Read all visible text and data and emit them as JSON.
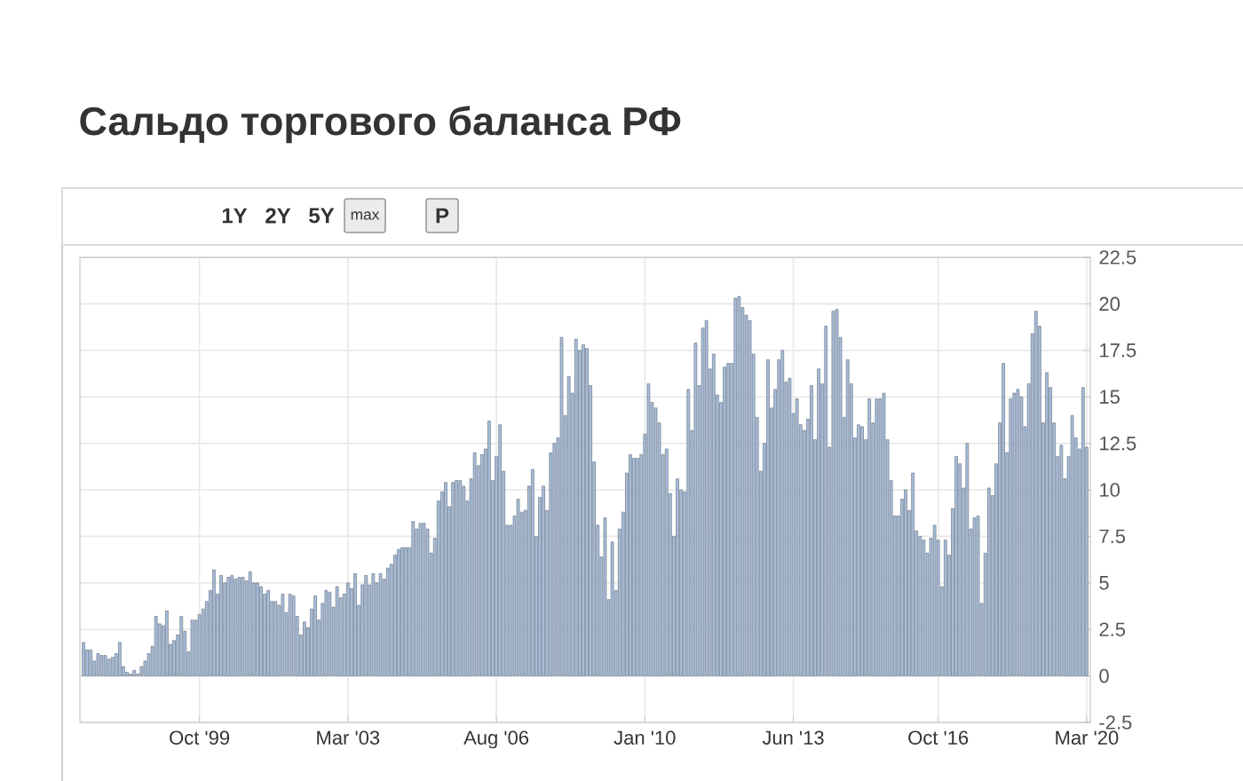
{
  "chart_data": {
    "type": "bar",
    "title": "Сальдо торгового баланса РФ",
    "annotations": [
      "1Y",
      "2Y",
      "5Y",
      "max",
      "P"
    ],
    "x": [
      "1997-02",
      "1997-03",
      "1997-04",
      "1997-05",
      "1997-06",
      "1997-07",
      "1997-08",
      "1997-09",
      "1997-10",
      "1997-11",
      "1997-12",
      "1998-01",
      "1998-02",
      "1998-03",
      "1998-04",
      "1998-05",
      "1998-06",
      "1998-07",
      "1998-08",
      "1998-09",
      "1998-10",
      "1998-11",
      "1998-12",
      "1999-01",
      "1999-02",
      "1999-03",
      "1999-04",
      "1999-05",
      "1999-06",
      "1999-07",
      "1999-08",
      "1999-09",
      "1999-10",
      "1999-11",
      "1999-12",
      "2000-01",
      "2000-02",
      "2000-03",
      "2000-04",
      "2000-05",
      "2000-06",
      "2000-07",
      "2000-08",
      "2000-09",
      "2000-10",
      "2000-11",
      "2000-12",
      "2001-01",
      "2001-02",
      "2001-03",
      "2001-04",
      "2001-05",
      "2001-06",
      "2001-07",
      "2001-08",
      "2001-09",
      "2001-10",
      "2001-11",
      "2001-12",
      "2002-01",
      "2002-02",
      "2002-03",
      "2002-04",
      "2002-05",
      "2002-06",
      "2002-07",
      "2002-08",
      "2002-09",
      "2002-10",
      "2002-11",
      "2002-12",
      "2003-01",
      "2003-02",
      "2003-03",
      "2003-04",
      "2003-05",
      "2003-06",
      "2003-07",
      "2003-08",
      "2003-09",
      "2003-10",
      "2003-11",
      "2003-12",
      "2004-01",
      "2004-02",
      "2004-03",
      "2004-04",
      "2004-05",
      "2004-06",
      "2004-07",
      "2004-08",
      "2004-09",
      "2004-10",
      "2004-11",
      "2004-12",
      "2005-01",
      "2005-02",
      "2005-03",
      "2005-04",
      "2005-05",
      "2005-06",
      "2005-07",
      "2005-08",
      "2005-09",
      "2005-10",
      "2005-11",
      "2005-12",
      "2006-01",
      "2006-02",
      "2006-03",
      "2006-04",
      "2006-05",
      "2006-06",
      "2006-07",
      "2006-08",
      "2006-09",
      "2006-10",
      "2006-11",
      "2006-12",
      "2007-01",
      "2007-02",
      "2007-03",
      "2007-04",
      "2007-05",
      "2007-06",
      "2007-07",
      "2007-08",
      "2007-09",
      "2007-10",
      "2007-11",
      "2007-12",
      "2008-01",
      "2008-02",
      "2008-03",
      "2008-04",
      "2008-05",
      "2008-06",
      "2008-07",
      "2008-08",
      "2008-09",
      "2008-10",
      "2008-11",
      "2008-12",
      "2009-01",
      "2009-02",
      "2009-03",
      "2009-04",
      "2009-05",
      "2009-06",
      "2009-07",
      "2009-08",
      "2009-09",
      "2009-10",
      "2009-11",
      "2009-12",
      "2010-01",
      "2010-02",
      "2010-03",
      "2010-04",
      "2010-05",
      "2010-06",
      "2010-07",
      "2010-08",
      "2010-09",
      "2010-10",
      "2010-11",
      "2010-12",
      "2011-01",
      "2011-02",
      "2011-03",
      "2011-04",
      "2011-05",
      "2011-06",
      "2011-07",
      "2011-08",
      "2011-09",
      "2011-10",
      "2011-11",
      "2011-12",
      "2012-01",
      "2012-02",
      "2012-03",
      "2012-04",
      "2012-05",
      "2012-06",
      "2012-07",
      "2012-08",
      "2012-09",
      "2012-10",
      "2012-11",
      "2012-12",
      "2013-01",
      "2013-02",
      "2013-03",
      "2013-04",
      "2013-05",
      "2013-06",
      "2013-07",
      "2013-08",
      "2013-09",
      "2013-10",
      "2013-11",
      "2013-12",
      "2014-01",
      "2014-02",
      "2014-03",
      "2014-04",
      "2014-05",
      "2014-06",
      "2014-07",
      "2014-08",
      "2014-09",
      "2014-10",
      "2014-11",
      "2014-12",
      "2015-01",
      "2015-02",
      "2015-03",
      "2015-04",
      "2015-05",
      "2015-06",
      "2015-07",
      "2015-08",
      "2015-09",
      "2015-10",
      "2015-11",
      "2015-12",
      "2016-01",
      "2016-02",
      "2016-03",
      "2016-04",
      "2016-05",
      "2016-06",
      "2016-07",
      "2016-08",
      "2016-09",
      "2016-10",
      "2016-11",
      "2016-12",
      "2017-01",
      "2017-02",
      "2017-03",
      "2017-04",
      "2017-05",
      "2017-06",
      "2017-07",
      "2017-08",
      "2017-09",
      "2017-10",
      "2017-11",
      "2017-12",
      "2018-01",
      "2018-02",
      "2018-03",
      "2018-04",
      "2018-05",
      "2018-06",
      "2018-07",
      "2018-08",
      "2018-09",
      "2018-10",
      "2018-11",
      "2018-12",
      "2019-01",
      "2019-02",
      "2019-03",
      "2019-04",
      "2019-05",
      "2019-06",
      "2019-07",
      "2019-08",
      "2019-09",
      "2019-10",
      "2019-11",
      "2019-12",
      "2020-01",
      "2020-02",
      "2020-03"
    ],
    "values": [
      1.8,
      1.4,
      1.4,
      0.8,
      1.2,
      1.1,
      1.1,
      0.9,
      1.0,
      1.2,
      1.8,
      0.5,
      0.2,
      0.1,
      0.3,
      0.1,
      0.5,
      0.8,
      1.2,
      1.6,
      3.2,
      2.8,
      2.7,
      3.5,
      1.7,
      1.9,
      2.2,
      3.2,
      2.4,
      1.3,
      3.0,
      3.0,
      3.3,
      3.6,
      4.0,
      4.6,
      5.7,
      4.4,
      5.4,
      5.0,
      5.3,
      5.4,
      5.2,
      5.3,
      5.3,
      5.1,
      5.6,
      5.0,
      5.0,
      4.8,
      4.4,
      4.6,
      4.0,
      4.0,
      3.8,
      4.4,
      3.4,
      4.4,
      4.3,
      3.2,
      2.2,
      2.9,
      2.6,
      3.6,
      4.3,
      3.0,
      3.9,
      4.6,
      4.5,
      3.7,
      4.8,
      4.2,
      4.4,
      5.0,
      4.7,
      5.5,
      3.8,
      4.9,
      5.4,
      4.9,
      5.5,
      5.0,
      5.5,
      5.2,
      5.8,
      6.0,
      6.5,
      6.8,
      6.9,
      6.9,
      6.9,
      8.3,
      7.9,
      8.2,
      8.2,
      7.9,
      6.6,
      7.4,
      9.4,
      9.9,
      10.4,
      9.1,
      10.4,
      10.5,
      10.5,
      10.2,
      9.4,
      10.6,
      12.0,
      11.3,
      11.9,
      12.2,
      13.7,
      10.5,
      11.8,
      13.5,
      11.0,
      8.1,
      8.1,
      8.6,
      9.5,
      8.8,
      8.9,
      10.2,
      11.1,
      7.5,
      9.6,
      10.2,
      8.9,
      12.0,
      12.5,
      12.8,
      18.2,
      14.0,
      16.1,
      15.2,
      18.1,
      17.5,
      17.8,
      17.6,
      15.6,
      11.5,
      8.1,
      6.4,
      8.5,
      4.1,
      7.2,
      4.6,
      7.9,
      8.8,
      10.9,
      11.9,
      11.7,
      11.7,
      11.9,
      13.0,
      15.7,
      14.7,
      14.4,
      13.6,
      11.9,
      12.2,
      9.8,
      7.5,
      10.6,
      10.0,
      9.9,
      15.4,
      13.2,
      17.9,
      15.6,
      18.7,
      19.1,
      16.5,
      17.3,
      15.1,
      14.7,
      16.6,
      16.8,
      16.8,
      20.3,
      20.4,
      19.8,
      19.4,
      19.1,
      17.3,
      13.9,
      11.0,
      12.5,
      17.0,
      14.4,
      15.4,
      17.0,
      17.5,
      15.8,
      16.0,
      14.1,
      14.9,
      13.5,
      13.2,
      13.8,
      15.6,
      12.7,
      16.5,
      15.7,
      18.8,
      12.3,
      19.6,
      19.7,
      18.2,
      13.9,
      17.0,
      15.7,
      12.8,
      13.5,
      13.4,
      12.7,
      14.9,
      13.6,
      14.9,
      14.9,
      15.2,
      12.7,
      10.5,
      8.6,
      8.6,
      9.5,
      10.0,
      8.9,
      10.9,
      7.8,
      7.5,
      7.3,
      6.6,
      7.4,
      8.1,
      7.3,
      4.8,
      7.3,
      6.5,
      9.0,
      11.8,
      11.4,
      10.1,
      12.5,
      7.9,
      8.5,
      8.6,
      3.9,
      6.6,
      10.1,
      9.7,
      11.4,
      13.6,
      16.8,
      12.0,
      14.9,
      15.2,
      15.4,
      15.0,
      13.4,
      15.7,
      18.4,
      19.6,
      18.8,
      13.6,
      16.3,
      15.5,
      13.6,
      11.8,
      12.4,
      10.6,
      11.8,
      14.0,
      12.8,
      12.2,
      15.5,
      12.3
    ],
    "color": "#a9bedb",
    "xlim": [
      "1997-01",
      "2020-04"
    ],
    "xticks": [
      {
        "value": "1999-10",
        "label": "Oct '99"
      },
      {
        "value": "2003-03",
        "label": "Mar '03"
      },
      {
        "value": "2006-08",
        "label": "Aug '06"
      },
      {
        "value": "2010-01",
        "label": "Jan '10"
      },
      {
        "value": "2013-06",
        "label": "Jun '13"
      },
      {
        "value": "2016-10",
        "label": "Oct '16"
      },
      {
        "value": "2020-03",
        "label": "Mar '20"
      }
    ],
    "ylim": [
      -2.5,
      22.5
    ],
    "yticks": [
      -2.5,
      0,
      2.5,
      5,
      7.5,
      10,
      12.5,
      15,
      17.5,
      20,
      22.5
    ],
    "grid": true
  }
}
